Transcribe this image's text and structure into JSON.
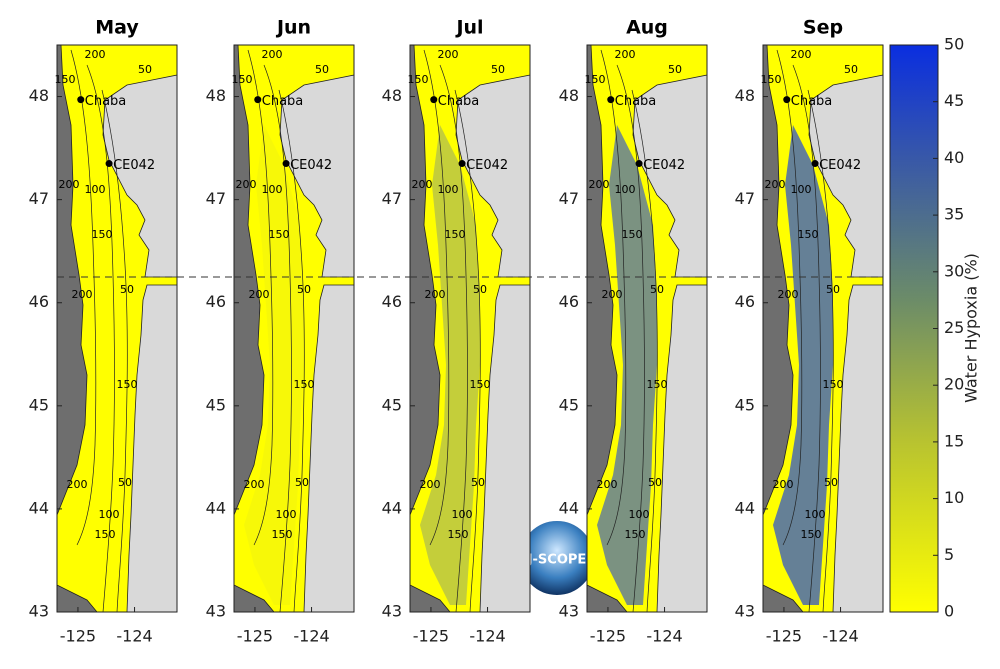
{
  "panels": [
    {
      "title": "May"
    },
    {
      "title": "Jun"
    },
    {
      "title": "Jul"
    },
    {
      "title": "Aug"
    },
    {
      "title": "Sep"
    }
  ],
  "axes": {
    "ylim": [
      43,
      48.5
    ],
    "yticks": [
      43,
      44,
      45,
      46,
      47,
      48
    ],
    "xlim": [
      -125.37,
      -123.25
    ],
    "xticks": [
      -125,
      -124
    ]
  },
  "stations": [
    "Chaba",
    "CE042"
  ],
  "contour_labels": [
    "200",
    "150",
    "50",
    "200",
    "100",
    "150",
    "200",
    "50",
    "150",
    "200",
    "50",
    "100",
    "150"
  ],
  "colorbar": {
    "label": "Water Hypoxia (%)",
    "lim": [
      0,
      50
    ],
    "ticks": [
      0,
      5,
      10,
      15,
      20,
      25,
      30,
      35,
      40,
      45,
      50
    ]
  },
  "logo": "J-SCOPE"
}
